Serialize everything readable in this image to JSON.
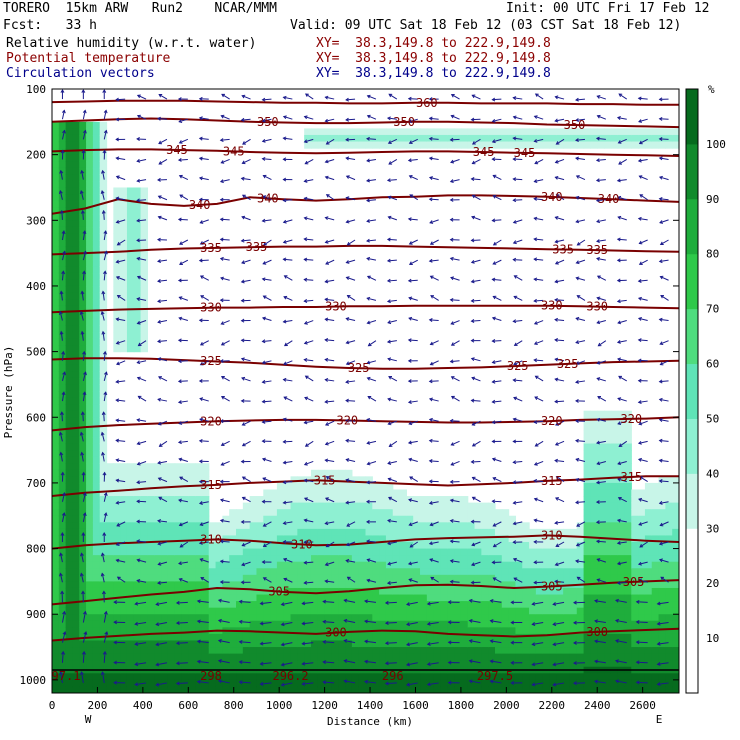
{
  "header": {
    "model": "TORERO  15km ARW   Run2    NCAR/MMM",
    "init": "Init: 00 UTC Fri 17 Feb 12",
    "fcst": "Fcst:   33 h",
    "valid": "Valid: 09 UTC Sat 18 Feb 12 (03 CST Sat 18 Feb 12)",
    "fields": [
      {
        "label": "Relative humidity (w.r.t. water)",
        "xy": "XY=  38.3,149.8 to 222.9,149.8",
        "color": "#000000"
      },
      {
        "label": "Potential temperature",
        "xy": "XY=  38.3,149.8 to 222.9,149.8",
        "color": "#8b0000"
      },
      {
        "label": "Circulation vectors",
        "xy": "XY=  38.3,149.8 to 222.9,149.8",
        "color": "#00008b"
      }
    ]
  },
  "colors": {
    "theta": "#7a0000",
    "vectors": "#1a1a8c",
    "rh": [
      "#ffffff",
      "#ffffff",
      "#ffffff",
      "#c8f5e8",
      "#8ef0d2",
      "#5fe4b7",
      "#4fdc7e",
      "#2fc94a",
      "#1fad3c",
      "#118a2c",
      "#066b1e"
    ]
  },
  "chart_data": {
    "type": "contour",
    "xlabel": "Distance (km)",
    "ylabel": "Pressure (hPa)",
    "xlim": [
      0,
      2760
    ],
    "ylim": [
      1020,
      100
    ],
    "xticks": [
      "0",
      "200",
      "400",
      "600",
      "800",
      "1000",
      "1200",
      "1400",
      "1600",
      "1800",
      "2000",
      "2200",
      "2400",
      "2600"
    ],
    "yticks": [
      "100",
      "200",
      "300",
      "400",
      "500",
      "600",
      "700",
      "800",
      "900",
      "1000"
    ],
    "x_end_labels": {
      "left": "W",
      "right": "E"
    },
    "colorbar": {
      "unit": "%",
      "levels": [
        10,
        20,
        30,
        40,
        50,
        60,
        70,
        80,
        90,
        100
      ]
    },
    "theta_contours": [
      {
        "value": 300,
        "p": [
          940,
          936,
          933,
          930,
          928,
          925,
          926,
          928,
          930,
          927,
          925,
          926,
          930,
          932,
          934,
          932,
          928,
          926,
          924,
          922
        ],
        "labels": [
          {
            "x": 1250,
            "text": "300"
          },
          {
            "x": 2400,
            "text": "300"
          }
        ]
      },
      {
        "value": 305,
        "p": [
          885,
          880,
          875,
          870,
          866,
          860,
          862,
          866,
          868,
          865,
          860,
          856,
          855,
          857,
          860,
          858,
          855,
          852,
          850,
          848
        ],
        "labels": [
          {
            "x": 1000,
            "text": "305"
          },
          {
            "x": 2200,
            "text": "305"
          },
          {
            "x": 2560,
            "text": "305"
          }
        ]
      },
      {
        "value": 310,
        "p": [
          800,
          795,
          792,
          790,
          788,
          786,
          788,
          792,
          795,
          794,
          790,
          786,
          784,
          783,
          782,
          780,
          782,
          785,
          788,
          790
        ],
        "labels": [
          {
            "x": 700,
            "text": "310"
          },
          {
            "x": 1100,
            "text": "310"
          },
          {
            "x": 2200,
            "text": "310"
          }
        ]
      },
      {
        "value": 315,
        "p": [
          720,
          715,
          712,
          708,
          705,
          703,
          700,
          698,
          696,
          698,
          700,
          702,
          704,
          702,
          700,
          697,
          695,
          692,
          690,
          690
        ],
        "labels": [
          {
            "x": 700,
            "text": "315"
          },
          {
            "x": 1200,
            "text": "315"
          },
          {
            "x": 2200,
            "text": "315"
          },
          {
            "x": 2550,
            "text": "315"
          }
        ]
      },
      {
        "value": 320,
        "p": [
          620,
          615,
          612,
          610,
          608,
          606,
          605,
          604,
          604,
          605,
          606,
          607,
          608,
          608,
          607,
          606,
          604,
          603,
          602,
          600
        ],
        "labels": [
          {
            "x": 700,
            "text": "320"
          },
          {
            "x": 1300,
            "text": "320"
          },
          {
            "x": 2200,
            "text": "320"
          },
          {
            "x": 2550,
            "text": "320"
          }
        ]
      },
      {
        "value": 325,
        "p": [
          512,
          510,
          510,
          511,
          513,
          515,
          517,
          520,
          523,
          525,
          526,
          526,
          525,
          524,
          522,
          520,
          518,
          516,
          515,
          514
        ],
        "labels": [
          {
            "x": 700,
            "text": "325"
          },
          {
            "x": 1350,
            "text": "325"
          },
          {
            "x": 2050,
            "text": "325"
          },
          {
            "x": 2270,
            "text": "325"
          }
        ]
      },
      {
        "value": 330,
        "p": [
          440,
          438,
          436,
          435,
          434,
          433,
          433,
          432,
          432,
          431,
          431,
          430,
          430,
          430,
          430,
          430,
          431,
          432,
          433,
          434
        ],
        "labels": [
          {
            "x": 700,
            "text": "330"
          },
          {
            "x": 1250,
            "text": "330"
          },
          {
            "x": 2200,
            "text": "330"
          },
          {
            "x": 2400,
            "text": "330"
          }
        ]
      },
      {
        "value": 335,
        "p": [
          352,
          350,
          348,
          345,
          343,
          342,
          341,
          340,
          340,
          339,
          339,
          340,
          341,
          342,
          343,
          344,
          345,
          346,
          347,
          348
        ],
        "labels": [
          {
            "x": 700,
            "text": "335"
          },
          {
            "x": 900,
            "text": "335"
          },
          {
            "x": 2250,
            "text": "335"
          },
          {
            "x": 2400,
            "text": "335"
          }
        ]
      },
      {
        "value": 340,
        "p": [
          290,
          282,
          268,
          275,
          278,
          275,
          265,
          268,
          270,
          268,
          265,
          264,
          262,
          262,
          263,
          264,
          266,
          268,
          270,
          272
        ],
        "labels": [
          {
            "x": 650,
            "text": "340"
          },
          {
            "x": 950,
            "text": "340"
          },
          {
            "x": 2200,
            "text": "340"
          },
          {
            "x": 2450,
            "text": "340"
          }
        ]
      },
      {
        "value": 345,
        "p": [
          195,
          193,
          192,
          192,
          193,
          194,
          196,
          197,
          198,
          197,
          196,
          195,
          195,
          196,
          197,
          198,
          199,
          200,
          201,
          202
        ],
        "labels": [
          {
            "x": 550,
            "text": "345"
          },
          {
            "x": 800,
            "text": "345"
          },
          {
            "x": 1900,
            "text": "345"
          },
          {
            "x": 2080,
            "text": "345"
          }
        ]
      },
      {
        "value": 350,
        "p": [
          150,
          148,
          146,
          145,
          146,
          148,
          150,
          151,
          152,
          152,
          151,
          150,
          150,
          151,
          152,
          154,
          155,
          156,
          157,
          158
        ],
        "labels": [
          {
            "x": 950,
            "text": "350"
          },
          {
            "x": 1550,
            "text": "350"
          },
          {
            "x": 2300,
            "text": "350"
          }
        ]
      },
      {
        "value": 360,
        "p": [
          120,
          119,
          118,
          118,
          118,
          119,
          120,
          121,
          121,
          122,
          122,
          121,
          121,
          122,
          122,
          122,
          123,
          123,
          124,
          124
        ],
        "labels": [
          {
            "x": 1650,
            "text": "360"
          }
        ]
      }
    ],
    "surface_labels": [
      {
        "x": 20,
        "text": "97.1"
      },
      {
        "x": 700,
        "text": "298"
      },
      {
        "x": 1050,
        "text": "296.2"
      },
      {
        "x": 1500,
        "text": "296"
      },
      {
        "x": 1950,
        "text": "297.5"
      }
    ]
  }
}
